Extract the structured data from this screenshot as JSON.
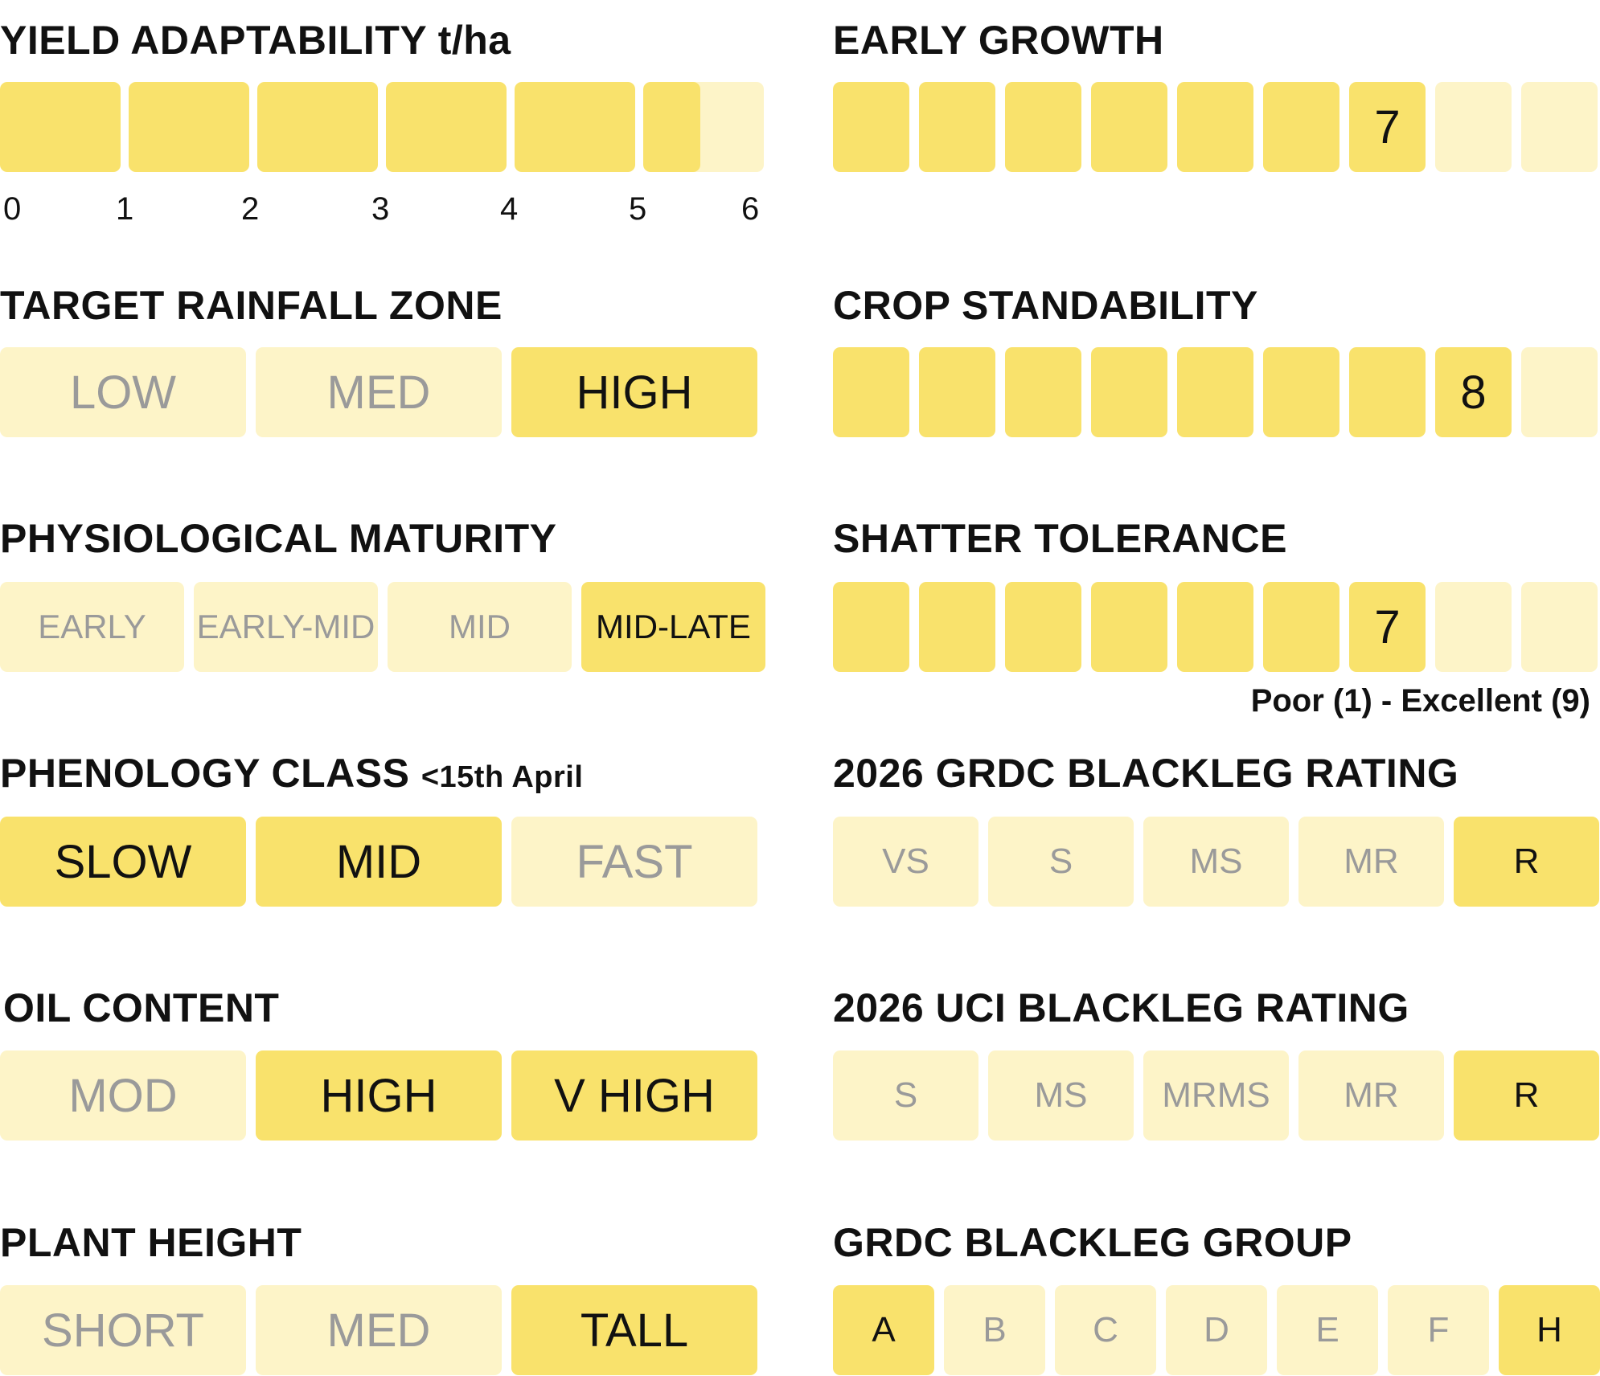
{
  "yield": {
    "title": "YIELD ADAPTABILITY t/ha",
    "ticks": [
      "0",
      "1",
      "2",
      "3",
      "4",
      "5",
      "6"
    ],
    "value": 5.47
  },
  "rainfall": {
    "title": "TARGET RAINFALL ZONE",
    "options": [
      "LOW",
      "MED",
      "HIGH"
    ],
    "selected": [
      "HIGH"
    ]
  },
  "maturity": {
    "title": "PHYSIOLOGICAL MATURITY",
    "options": [
      "EARLY",
      "EARLY-MID",
      "MID",
      "MID-LATE"
    ],
    "selected": [
      "MID-LATE"
    ]
  },
  "phenology": {
    "title": "PHENOLOGY CLASS",
    "subtitle": "<15th April",
    "options": [
      "SLOW",
      "MID",
      "FAST"
    ],
    "selected": [
      "SLOW",
      "MID"
    ]
  },
  "oil": {
    "title": "OIL CONTENT",
    "options": [
      "MOD",
      "HIGH",
      "V HIGH"
    ],
    "selected": [
      "HIGH",
      "V HIGH"
    ]
  },
  "height": {
    "title": "PLANT HEIGHT",
    "options": [
      "SHORT",
      "MED",
      "TALL"
    ],
    "selected": [
      "TALL"
    ]
  },
  "early_growth": {
    "title": "EARLY GROWTH",
    "value": 7,
    "max": 9,
    "value_label": "7"
  },
  "standability": {
    "title": "CROP STANDABILITY",
    "value": 8,
    "max": 9,
    "value_label": "8"
  },
  "shatter": {
    "title": "SHATTER TOLERANCE",
    "value": 7,
    "max": 9,
    "value_label": "7",
    "scale_note": "Poor (1) - Excellent (9)"
  },
  "grdc_rating": {
    "title": "2026 GRDC BLACKLEG RATING",
    "options": [
      "VS",
      "S",
      "MS",
      "MR",
      "R"
    ],
    "selected": [
      "R"
    ]
  },
  "uci_rating": {
    "title": "2026 UCI BLACKLEG RATING",
    "options": [
      "S",
      "MS",
      "MRMS",
      "MR",
      "R"
    ],
    "selected": [
      "R"
    ]
  },
  "grdc_group": {
    "title": "GRDC BLACKLEG GROUP",
    "options": [
      "A",
      "B",
      "C",
      "D",
      "E",
      "F",
      "H"
    ],
    "selected": [
      "A",
      "H"
    ]
  },
  "colors": {
    "active": "#f9e26c",
    "inactive": "#fdf4c8",
    "active_text": "#111111",
    "inactive_text": "#9a9a9a"
  }
}
